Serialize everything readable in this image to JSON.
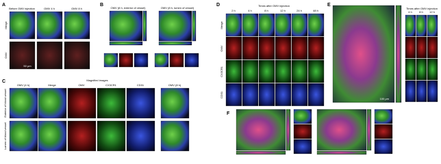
{
  "panel_a": {
    "label": "A",
    "columns": [
      "Before OMV injection",
      "OMV 4 h",
      "OMV 8 h"
    ],
    "rows": [
      "Merge",
      "OMV"
    ],
    "scale_bar": "50 μm"
  },
  "panel_b": {
    "label": "B",
    "titles": [
      "OMV (8 h, exterior of vessel)",
      "OMV (8 h, lumen of vessel)"
    ]
  },
  "panel_c": {
    "label": "C",
    "header": "Magnified images",
    "columns": [
      "OMV (4 h)",
      "Merge",
      "OMV",
      "CX3CR1",
      "CD31",
      "OMV (8 h)"
    ],
    "rows": [
      "Exterior of blood vessel",
      "Lumen of blood vessel"
    ]
  },
  "panel_d": {
    "label": "D",
    "title": "Times after OMV injection",
    "columns": [
      "2 h",
      "4 h",
      "8 h",
      "12 h",
      "24 h",
      "48 h"
    ],
    "rows": [
      "Merge",
      "OMV",
      "CX3CR1",
      "CD31"
    ]
  },
  "panel_e": {
    "label": "E",
    "title": "Times after OMV injection",
    "columns": [
      "4 h",
      "8 h",
      "12 h"
    ],
    "scale_bar": "100 μm"
  },
  "panel_f": {
    "label": "F"
  }
}
